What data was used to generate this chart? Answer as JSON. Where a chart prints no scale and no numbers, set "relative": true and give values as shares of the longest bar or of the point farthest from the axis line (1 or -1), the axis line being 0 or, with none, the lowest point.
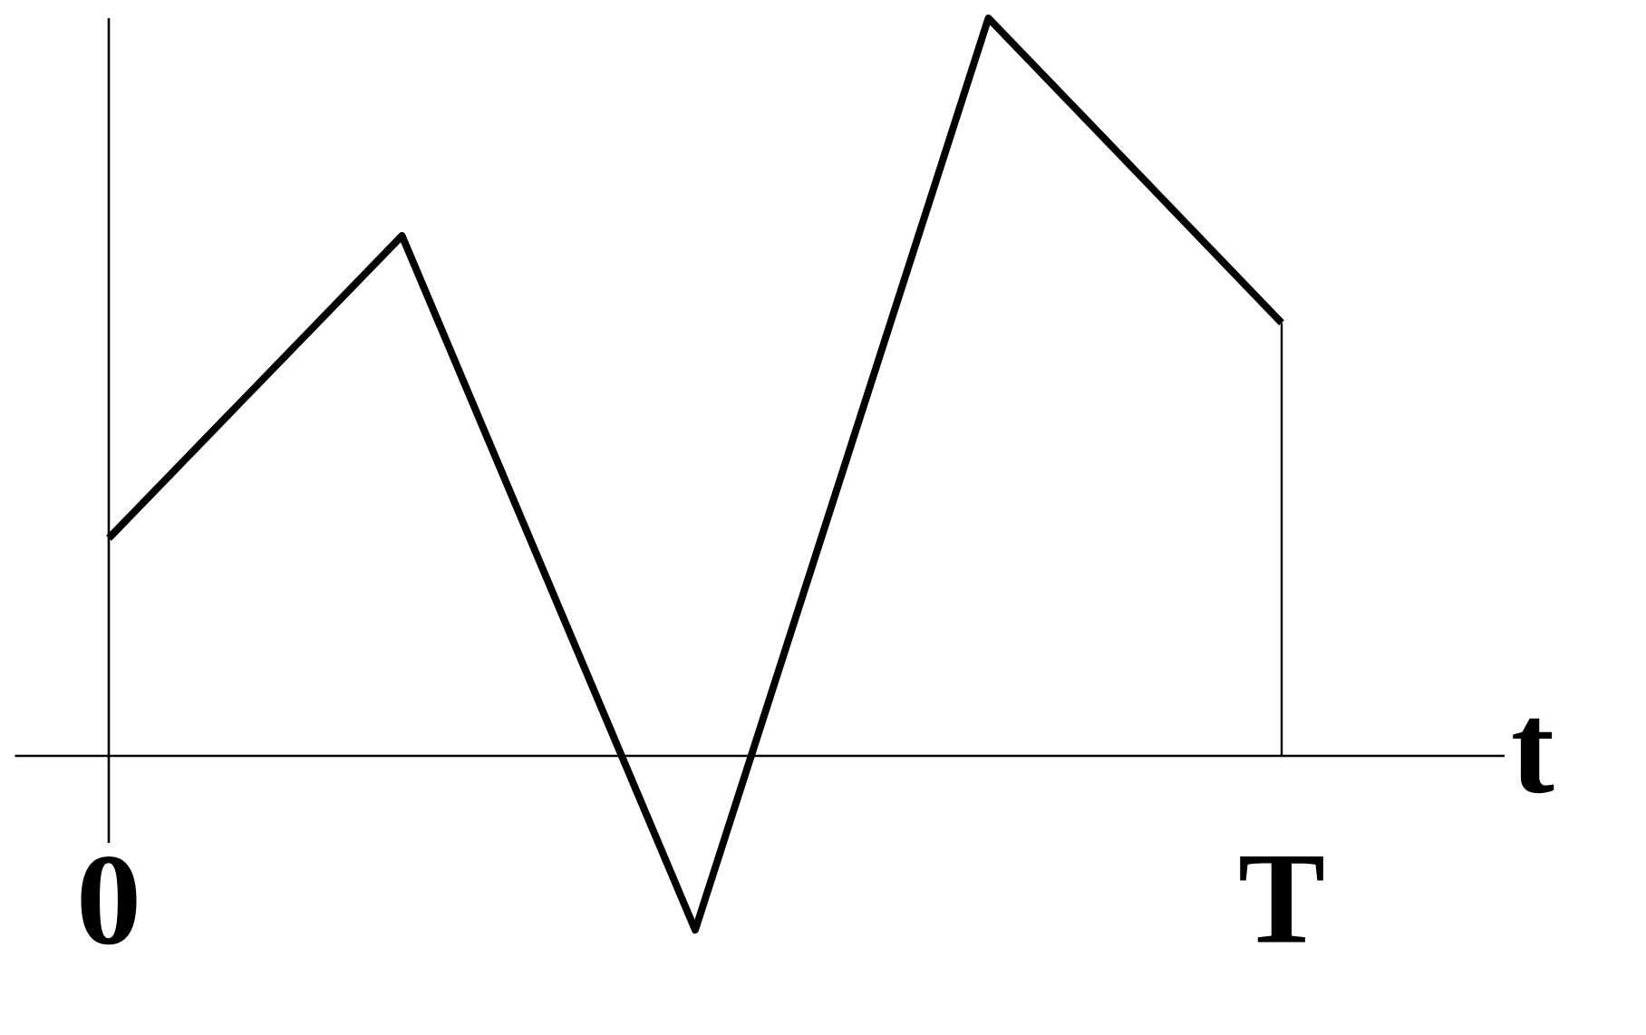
{
  "chart_data": {
    "type": "line",
    "relative": true,
    "xlabel": "t",
    "categories": [
      "0",
      null,
      null,
      null,
      "T"
    ],
    "series": [
      {
        "color": "#000000",
        "values": [
          0.295,
          0.705,
          -0.236,
          1,
          0.587
        ]
      }
    ],
    "ref_lines": [
      {
        "axis": "x",
        "value": "T"
      }
    ],
    "marker": "none",
    "line_style": "solid"
  }
}
